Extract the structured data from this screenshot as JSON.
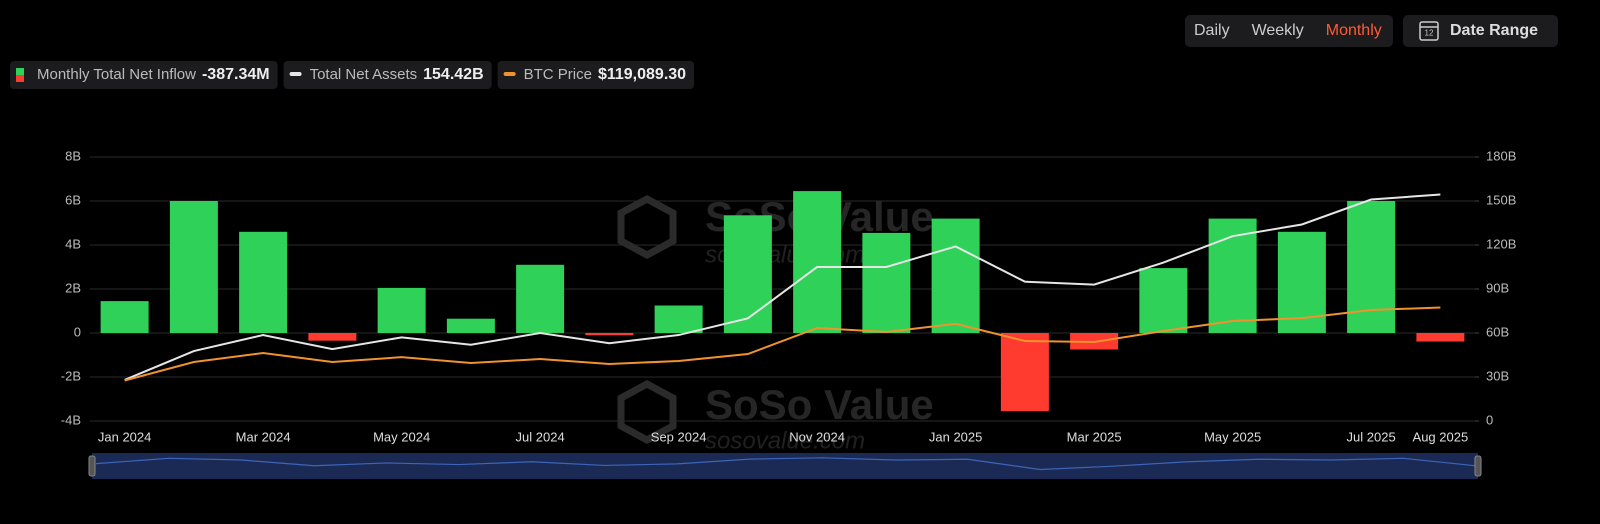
{
  "controls": {
    "periods": [
      "Daily",
      "Weekly",
      "Monthly"
    ],
    "active": "Monthly",
    "date_range": "Date Range",
    "calendar_icon": "12"
  },
  "watermark": {
    "brand": "SoSo Value",
    "site": "sosovalue.com"
  },
  "chart_data": {
    "type": "bar-line",
    "categories": [
      "Jan 2024",
      null,
      "Mar 2024",
      null,
      "May 2024",
      null,
      "Jul 2024",
      null,
      "Sep 2024",
      null,
      "Nov 2024",
      null,
      "Jan 2025",
      null,
      "Mar 2025",
      null,
      "May 2025",
      null,
      "Jul 2025",
      "Aug 2025"
    ],
    "series": [
      {
        "name": "Monthly Total Net Inflow",
        "legend_value": "-387.34M",
        "type": "bar",
        "color": "#30d158",
        "negative_color": "#ff3b30",
        "values": [
          1.45,
          6.0,
          4.6,
          -0.35,
          2.05,
          0.65,
          3.1,
          -0.1,
          1.25,
          5.35,
          6.45,
          4.55,
          5.2,
          -3.55,
          -0.75,
          2.95,
          5.2,
          4.6,
          6.0,
          -0.38734
        ]
      },
      {
        "name": "Total Net Assets",
        "legend_value": "154.42B",
        "type": "line",
        "axis": "y2",
        "color": "#e6e6e6",
        "values": [
          28,
          47.7,
          58.6,
          49,
          57,
          52,
          60,
          53,
          58.6,
          70,
          105,
          105,
          119,
          95,
          93,
          108,
          126,
          134,
          151,
          154.42
        ]
      },
      {
        "name": "BTC Price",
        "legend_value": "$119,089.30",
        "type": "line",
        "axis": "y3",
        "color": "#f0922e",
        "values": [
          42500,
          61900,
          71300,
          61900,
          67000,
          60800,
          65000,
          59800,
          63000,
          70300,
          97600,
          93400,
          102000,
          84000,
          82900,
          94400,
          104900,
          108000,
          116500,
          119089.3
        ]
      }
    ],
    "ylim": [
      -4,
      8
    ],
    "yticks": [
      {
        "value": -4,
        "label": "-4B"
      },
      {
        "value": -2,
        "label": "-2B"
      },
      0,
      {
        "value": 2,
        "label": "2B"
      },
      {
        "value": 4,
        "label": "4B"
      },
      {
        "value": 6,
        "label": "6B"
      },
      {
        "value": 8,
        "label": "8B"
      }
    ],
    "y2lim": [
      0,
      180
    ],
    "y2ticks": [
      0,
      {
        "value": 30,
        "label": "30B"
      },
      {
        "value": 60,
        "label": "60B"
      },
      {
        "value": 90,
        "label": "90B"
      },
      {
        "value": 120,
        "label": "120B"
      },
      {
        "value": 150,
        "label": "150B"
      },
      {
        "value": 180,
        "label": "180B"
      }
    ],
    "y3lim": [
      0,
      277000
    ],
    "grid": true
  }
}
